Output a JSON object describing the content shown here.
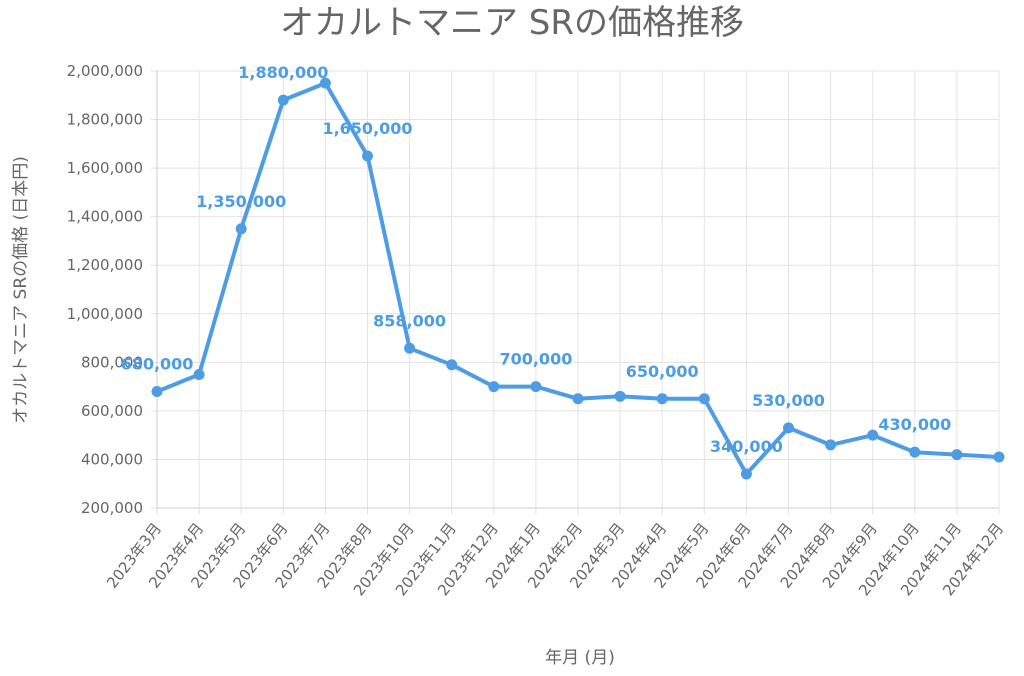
{
  "chart_data": {
    "type": "line",
    "title": "オカルトマニア SRの価格推移",
    "xlabel": "年月 (月)",
    "ylabel": "オカルトマニア SRの価格 (日本円)",
    "ylim": [
      200000,
      2000000
    ],
    "yticks": [
      "200,000",
      "400,000",
      "600,000",
      "800,000",
      "1,000,000",
      "1,200,000",
      "1,400,000",
      "1,600,000",
      "1,800,000",
      "2,000,000"
    ],
    "grid": true,
    "categories": [
      "2023年3月",
      "2023年4月",
      "2023年5月",
      "2023年6月",
      "2023年7月",
      "2023年8月",
      "2023年10月",
      "2023年11月",
      "2023年12月",
      "2024年1月",
      "2024年2月",
      "2024年3月",
      "2024年4月",
      "2024年5月",
      "2024年6月",
      "2024年7月",
      "2024年8月",
      "2024年9月",
      "2024年10月",
      "2024年11月",
      "2024年12月"
    ],
    "series": [
      {
        "color": "#4e9de4",
        "values": [
          680000,
          750000,
          1350000,
          1880000,
          1950000,
          1650000,
          858000,
          790000,
          700000,
          700000,
          650000,
          660000,
          650000,
          650000,
          340000,
          530000,
          460000,
          500000,
          430000,
          420000,
          410000
        ]
      }
    ],
    "data_labels": [
      {
        "index": 0,
        "text": "680,000"
      },
      {
        "index": 2,
        "text": "1,350,000"
      },
      {
        "index": 3,
        "text": "1,880,000"
      },
      {
        "index": 5,
        "text": "1,650,000"
      },
      {
        "index": 6,
        "text": "858,000"
      },
      {
        "index": 9,
        "text": "700,000"
      },
      {
        "index": 12,
        "text": "650,000"
      },
      {
        "index": 14,
        "text": "340,000"
      },
      {
        "index": 15,
        "text": "530,000"
      },
      {
        "index": 18,
        "text": "430,000"
      }
    ]
  }
}
